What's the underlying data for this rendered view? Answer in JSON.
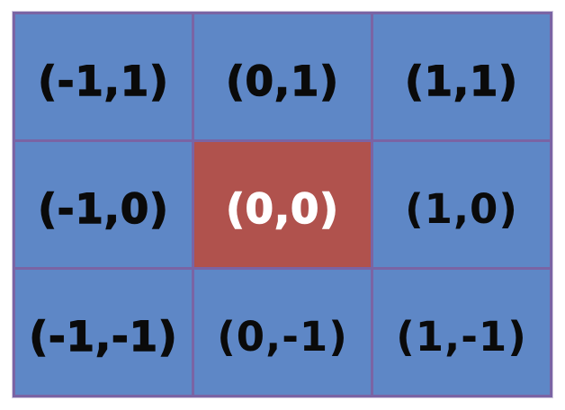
{
  "figure": {
    "description_label": "3x3 neighborhood coordinate grid with highlighted center cell"
  },
  "grid": {
    "rows": 3,
    "cols": 3,
    "cells": [
      {
        "label": "(-1,1)",
        "highlighted": false,
        "heavy": true
      },
      {
        "label": "(0,1)",
        "highlighted": false,
        "heavy": true
      },
      {
        "label": "(1,1)",
        "highlighted": false,
        "heavy": true
      },
      {
        "label": "(-1,0)",
        "highlighted": false,
        "heavy": true
      },
      {
        "label": "(0,0)",
        "highlighted": true,
        "heavy": true
      },
      {
        "label": "(1,0)",
        "highlighted": false,
        "heavy": false
      },
      {
        "label": "(-1,-1)",
        "highlighted": false,
        "heavy": true
      },
      {
        "label": "(0,-1)",
        "highlighted": false,
        "heavy": false
      },
      {
        "label": "(1,-1)",
        "highlighted": false,
        "heavy": false
      }
    ]
  },
  "colors": {
    "cell_blue": "#5e87c6",
    "cell_highlight_red": "#b0524d",
    "grid_border_purple": "#7a64a4",
    "label_black": "#0a0a0a",
    "label_white": "#ffffff",
    "page_background": "#ffffff"
  }
}
